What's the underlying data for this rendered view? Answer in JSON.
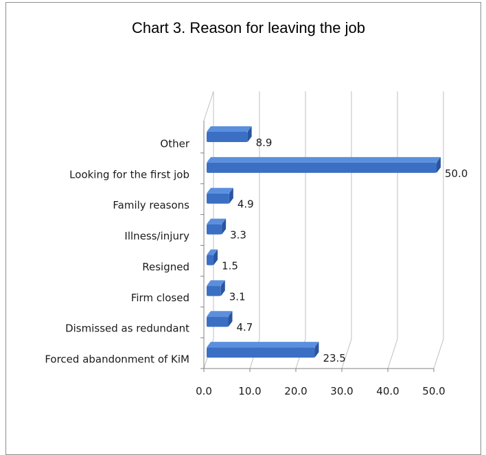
{
  "chart_data": {
    "type": "bar",
    "orientation": "horizontal",
    "three_d": true,
    "title": "Chart 3. Reason for leaving the job",
    "categories": [
      "Forced abandonment of KiM",
      "Dismissed as redundant",
      "Firm closed",
      "Resigned",
      "Illness/injury",
      "Family reasons",
      "Looking for the first job",
      "Other"
    ],
    "values": [
      23.5,
      4.7,
      3.1,
      1.5,
      3.3,
      4.9,
      50.0,
      8.9
    ],
    "value_labels": [
      "23.5",
      "4.7",
      "3.1",
      "1.5",
      "3.3",
      "4.9",
      "50.0",
      "8.9"
    ],
    "xticks": [
      0,
      10,
      20,
      30,
      40,
      50
    ],
    "xtick_labels": [
      "0.0",
      "10.0",
      "20.0",
      "30.0",
      "40.0",
      "50.0"
    ],
    "xlim": [
      0,
      50
    ],
    "grid": true,
    "legend": false,
    "bar_color": "#3b6fc4",
    "bar_top_color": "#5b8fde",
    "bar_side_color": "#2a55a0"
  }
}
